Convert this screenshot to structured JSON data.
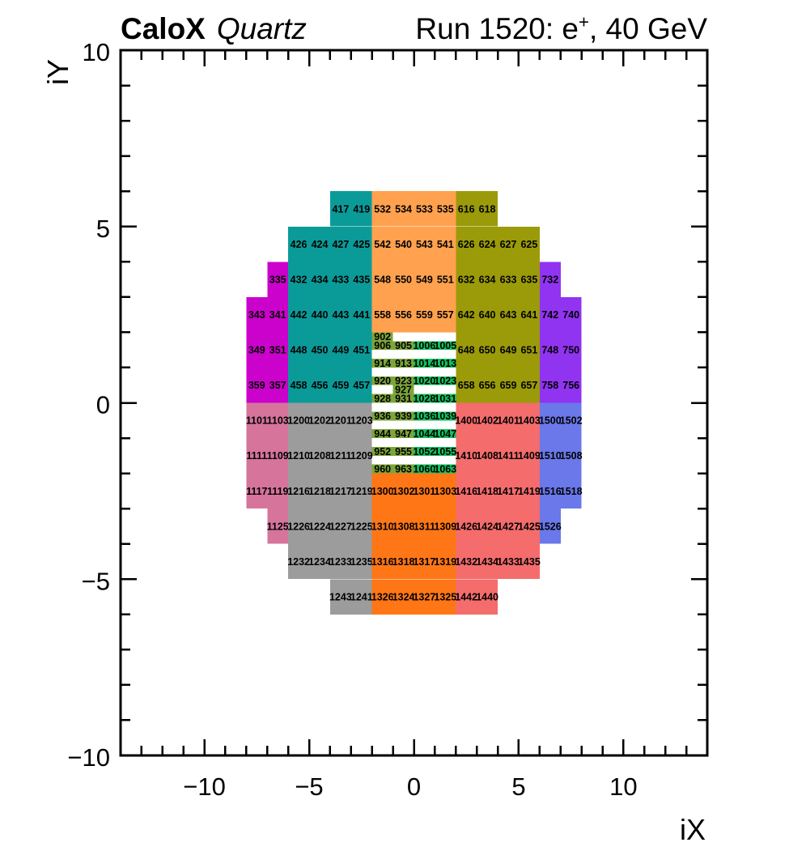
{
  "header": {
    "experiment": "CaloX",
    "detector_tag": "Quartz",
    "run_label": {
      "prefix": "Run 1520: e",
      "superscript": "+",
      "suffix": ", 40 GeV"
    }
  },
  "axes": {
    "x": {
      "title": "iX",
      "range": [
        -14,
        14
      ],
      "minor_tick_step": 1,
      "major_tick_values": [
        -10,
        -5,
        0,
        5,
        10
      ],
      "major_tick_labels": [
        "−10",
        "−5",
        "0",
        "5",
        "10"
      ]
    },
    "y": {
      "title": "iY",
      "range": [
        -10,
        10
      ],
      "minor_tick_step": 1,
      "major_tick_values": [
        10,
        5,
        0,
        -5,
        -10
      ],
      "major_tick_labels": [
        "10",
        "5",
        "0",
        "−5",
        "−10"
      ]
    }
  },
  "chart_data": {
    "type": "heatmap",
    "title": "Run 1520: e+, 40 GeV",
    "subtitle": "CaloX Quartz",
    "xlabel": "iX",
    "ylabel": "iY",
    "xlim": [
      -14,
      14
    ],
    "ylim": [
      -10,
      10
    ],
    "grid": false,
    "note": "calorimeter channel map; each cell = [channel_id, iX_left, iY_bottom]",
    "regions": [
      {
        "name": "sector-300-magenta",
        "color": "#CB02CB",
        "cell_size": [
          1,
          1
        ],
        "cells": [
          [
            335,
            -7,
            3
          ],
          [
            343,
            -8,
            2
          ],
          [
            341,
            -7,
            2
          ],
          [
            349,
            -8,
            1
          ],
          [
            351,
            -7,
            1
          ],
          [
            359,
            -8,
            0
          ],
          [
            357,
            -7,
            0
          ]
        ]
      },
      {
        "name": "sector-400-teal",
        "color": "#0A9B99",
        "cell_size": [
          1,
          1
        ],
        "cells": [
          [
            417,
            -4,
            5
          ],
          [
            419,
            -3,
            5
          ],
          [
            426,
            -6,
            4
          ],
          [
            424,
            -5,
            4
          ],
          [
            427,
            -4,
            4
          ],
          [
            425,
            -3,
            4
          ],
          [
            432,
            -6,
            3
          ],
          [
            434,
            -5,
            3
          ],
          [
            433,
            -4,
            3
          ],
          [
            435,
            -3,
            3
          ],
          [
            442,
            -6,
            2
          ],
          [
            440,
            -5,
            2
          ],
          [
            443,
            -4,
            2
          ],
          [
            441,
            -3,
            2
          ],
          [
            448,
            -6,
            1
          ],
          [
            450,
            -5,
            1
          ],
          [
            449,
            -4,
            1
          ],
          [
            451,
            -3,
            1
          ],
          [
            458,
            -6,
            0
          ],
          [
            456,
            -5,
            0
          ],
          [
            459,
            -4,
            0
          ],
          [
            457,
            -3,
            0
          ]
        ]
      },
      {
        "name": "sector-500-light-orange",
        "color": "#FFA14E",
        "cell_size": [
          1,
          1
        ],
        "cells": [
          [
            532,
            -2,
            5
          ],
          [
            534,
            -1,
            5
          ],
          [
            533,
            0,
            5
          ],
          [
            535,
            1,
            5
          ],
          [
            542,
            -2,
            4
          ],
          [
            540,
            -1,
            4
          ],
          [
            543,
            0,
            4
          ],
          [
            541,
            1,
            4
          ],
          [
            548,
            -2,
            3
          ],
          [
            550,
            -1,
            3
          ],
          [
            549,
            0,
            3
          ],
          [
            551,
            1,
            3
          ],
          [
            558,
            -2,
            2
          ],
          [
            556,
            -1,
            2
          ],
          [
            559,
            0,
            2
          ],
          [
            557,
            1,
            2
          ]
        ]
      },
      {
        "name": "sector-600-olive",
        "color": "#9B9B09",
        "cell_size": [
          1,
          1
        ],
        "cells": [
          [
            616,
            2,
            5
          ],
          [
            618,
            3,
            5
          ],
          [
            626,
            2,
            4
          ],
          [
            624,
            3,
            4
          ],
          [
            627,
            4,
            4
          ],
          [
            625,
            5,
            4
          ],
          [
            632,
            2,
            3
          ],
          [
            634,
            3,
            3
          ],
          [
            633,
            4,
            3
          ],
          [
            635,
            5,
            3
          ],
          [
            642,
            2,
            2
          ],
          [
            640,
            3,
            2
          ],
          [
            643,
            4,
            2
          ],
          [
            641,
            5,
            2
          ],
          [
            648,
            2,
            1
          ],
          [
            650,
            3,
            1
          ],
          [
            649,
            4,
            1
          ],
          [
            651,
            5,
            1
          ],
          [
            658,
            2,
            0
          ],
          [
            656,
            3,
            0
          ],
          [
            659,
            4,
            0
          ],
          [
            657,
            5,
            0
          ]
        ]
      },
      {
        "name": "sector-700-violet",
        "color": "#9134F1",
        "cell_size": [
          1,
          1
        ],
        "cells": [
          [
            732,
            6,
            3
          ],
          [
            742,
            6,
            2
          ],
          [
            740,
            7,
            2
          ],
          [
            748,
            6,
            1
          ],
          [
            750,
            7,
            1
          ],
          [
            758,
            6,
            0
          ],
          [
            756,
            7,
            0
          ]
        ]
      },
      {
        "name": "sector-900-dark-green",
        "color": "#7CA53A",
        "cell_size": [
          1,
          0.25
        ],
        "cells": [
          [
            902,
            -2,
            1.75
          ],
          [
            906,
            -2,
            1.5
          ],
          [
            905,
            -1,
            1.5
          ],
          [
            914,
            -2,
            1
          ],
          [
            913,
            -1,
            1
          ],
          [
            920,
            -2,
            0.5
          ],
          [
            923,
            -1,
            0.5
          ],
          [
            927,
            -1,
            0.25
          ],
          [
            928,
            -2,
            0
          ],
          [
            931,
            -1,
            0
          ],
          [
            936,
            -2,
            -0.5
          ],
          [
            939,
            -1,
            -0.5
          ],
          [
            944,
            -2,
            -1
          ],
          [
            947,
            -1,
            -1
          ],
          [
            952,
            -2,
            -1.5
          ],
          [
            955,
            -1,
            -1.5
          ],
          [
            960,
            -2,
            -2
          ],
          [
            963,
            -1,
            -2
          ]
        ]
      },
      {
        "name": "sector-1000-bright-green",
        "color": "#13C15F",
        "cell_size": [
          1,
          0.25
        ],
        "cells": [
          [
            1006,
            0,
            1.5
          ],
          [
            1005,
            1,
            1.5
          ],
          [
            1014,
            0,
            1
          ],
          [
            1013,
            1,
            1
          ],
          [
            1020,
            0,
            0.5
          ],
          [
            1023,
            1,
            0.5
          ],
          [
            1028,
            0,
            0
          ],
          [
            1031,
            1,
            0
          ],
          [
            1036,
            0,
            -0.5
          ],
          [
            1039,
            1,
            -0.5
          ],
          [
            1044,
            0,
            -1
          ],
          [
            1047,
            1,
            -1
          ],
          [
            1052,
            0,
            -1.5
          ],
          [
            1055,
            1,
            -1.5
          ],
          [
            1060,
            0,
            -2
          ],
          [
            1063,
            1,
            -2
          ]
        ]
      },
      {
        "name": "sector-1100-pink",
        "color": "#D6749B",
        "cell_size": [
          1,
          1
        ],
        "cells": [
          [
            1101,
            -8,
            -1
          ],
          [
            1103,
            -7,
            -1
          ],
          [
            1111,
            -8,
            -2
          ],
          [
            1109,
            -7,
            -2
          ],
          [
            1117,
            -8,
            -3
          ],
          [
            1119,
            -7,
            -3
          ],
          [
            1125,
            -7,
            -4
          ]
        ]
      },
      {
        "name": "sector-1200-gray",
        "color": "#9C9C9C",
        "cell_size": [
          1,
          1
        ],
        "cells": [
          [
            1200,
            -6,
            -1
          ],
          [
            1202,
            -5,
            -1
          ],
          [
            1201,
            -4,
            -1
          ],
          [
            1203,
            -3,
            -1
          ],
          [
            1210,
            -6,
            -2
          ],
          [
            1208,
            -5,
            -2
          ],
          [
            1211,
            -4,
            -2
          ],
          [
            1209,
            -3,
            -2
          ],
          [
            1216,
            -6,
            -3
          ],
          [
            1218,
            -5,
            -3
          ],
          [
            1217,
            -4,
            -3
          ],
          [
            1219,
            -3,
            -3
          ],
          [
            1226,
            -6,
            -4
          ],
          [
            1224,
            -5,
            -4
          ],
          [
            1227,
            -4,
            -4
          ],
          [
            1225,
            -3,
            -4
          ],
          [
            1232,
            -6,
            -5
          ],
          [
            1234,
            -5,
            -5
          ],
          [
            1233,
            -4,
            -5
          ],
          [
            1235,
            -3,
            -5
          ],
          [
            1243,
            -4,
            -6
          ],
          [
            1241,
            -3,
            -6
          ]
        ]
      },
      {
        "name": "sector-1300-dark-orange",
        "color": "#FF7616",
        "cell_size": [
          1,
          1
        ],
        "cells": [
          [
            1300,
            -2,
            -3
          ],
          [
            1302,
            -1,
            -3
          ],
          [
            1301,
            0,
            -3
          ],
          [
            1303,
            1,
            -3
          ],
          [
            1310,
            -2,
            -4
          ],
          [
            1308,
            -1,
            -4
          ],
          [
            1311,
            0,
            -4
          ],
          [
            1309,
            1,
            -4
          ],
          [
            1316,
            -2,
            -5
          ],
          [
            1318,
            -1,
            -5
          ],
          [
            1317,
            0,
            -5
          ],
          [
            1319,
            1,
            -5
          ],
          [
            1326,
            -2,
            -6
          ],
          [
            1324,
            -1,
            -6
          ],
          [
            1327,
            0,
            -6
          ],
          [
            1325,
            1,
            -6
          ]
        ]
      },
      {
        "name": "sector-1400-red",
        "color": "#F46C6C",
        "cell_size": [
          1,
          1
        ],
        "cells": [
          [
            1400,
            2,
            -1
          ],
          [
            1402,
            3,
            -1
          ],
          [
            1401,
            4,
            -1
          ],
          [
            1403,
            5,
            -1
          ],
          [
            1410,
            2,
            -2
          ],
          [
            1408,
            3,
            -2
          ],
          [
            1411,
            4,
            -2
          ],
          [
            1409,
            5,
            -2
          ],
          [
            1416,
            2,
            -3
          ],
          [
            1418,
            3,
            -3
          ],
          [
            1417,
            4,
            -3
          ],
          [
            1419,
            5,
            -3
          ],
          [
            1426,
            2,
            -4
          ],
          [
            1424,
            3,
            -4
          ],
          [
            1427,
            4,
            -4
          ],
          [
            1425,
            5,
            -4
          ],
          [
            1432,
            2,
            -5
          ],
          [
            1434,
            3,
            -5
          ],
          [
            1433,
            4,
            -5
          ],
          [
            1435,
            5,
            -5
          ],
          [
            1442,
            2,
            -6
          ],
          [
            1440,
            3,
            -6
          ]
        ]
      },
      {
        "name": "sector-1500-blue",
        "color": "#6A78EA",
        "cell_size": [
          1,
          1
        ],
        "cells": [
          [
            1500,
            6,
            -1
          ],
          [
            1502,
            7,
            -1
          ],
          [
            1510,
            6,
            -2
          ],
          [
            1508,
            7,
            -2
          ],
          [
            1516,
            6,
            -3
          ],
          [
            1518,
            7,
            -3
          ],
          [
            1526,
            6,
            -4
          ]
        ]
      }
    ]
  }
}
